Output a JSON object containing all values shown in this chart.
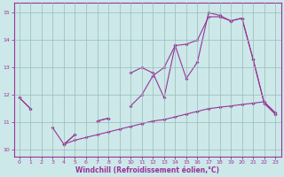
{
  "xlabel": "Windchill (Refroidissement éolien,°C)",
  "x_values": [
    0,
    1,
    2,
    3,
    4,
    5,
    6,
    7,
    8,
    9,
    10,
    11,
    12,
    13,
    14,
    15,
    16,
    17,
    18,
    19,
    20,
    21,
    22,
    23
  ],
  "line1": [
    11.9,
    11.5,
    null,
    null,
    10.2,
    10.55,
    null,
    11.05,
    11.15,
    null,
    12.8,
    13.0,
    12.8,
    11.9,
    13.8,
    12.6,
    13.2,
    15.0,
    14.9,
    14.7,
    14.8,
    13.3,
    11.7,
    11.3
  ],
  "line2": [
    11.9,
    11.5,
    null,
    null,
    10.2,
    10.55,
    null,
    11.05,
    11.15,
    null,
    11.6,
    12.0,
    12.7,
    13.0,
    13.8,
    13.85,
    14.0,
    14.85,
    14.85,
    14.7,
    14.8,
    13.3,
    11.7,
    11.3
  ],
  "line3": [
    null,
    null,
    null,
    10.8,
    10.2,
    10.35,
    10.45,
    10.55,
    10.65,
    10.75,
    10.85,
    10.95,
    11.05,
    11.1,
    11.2,
    11.3,
    11.4,
    11.5,
    11.55,
    11.6,
    11.65,
    11.7,
    11.75,
    11.35
  ],
  "bg_color": "#cce8e8",
  "line_color": "#993399",
  "grid_color": "#99bbbb",
  "spine_color": "#993399",
  "tick_color": "#993399",
  "xlabel_color": "#993399",
  "ylim": [
    9.75,
    15.35
  ],
  "xlim": [
    -0.5,
    23.5
  ],
  "yticks": [
    10,
    11,
    12,
    13,
    14,
    15
  ],
  "xticks": [
    0,
    1,
    2,
    3,
    4,
    5,
    6,
    7,
    8,
    9,
    10,
    11,
    12,
    13,
    14,
    15,
    16,
    17,
    18,
    19,
    20,
    21,
    22,
    23
  ]
}
